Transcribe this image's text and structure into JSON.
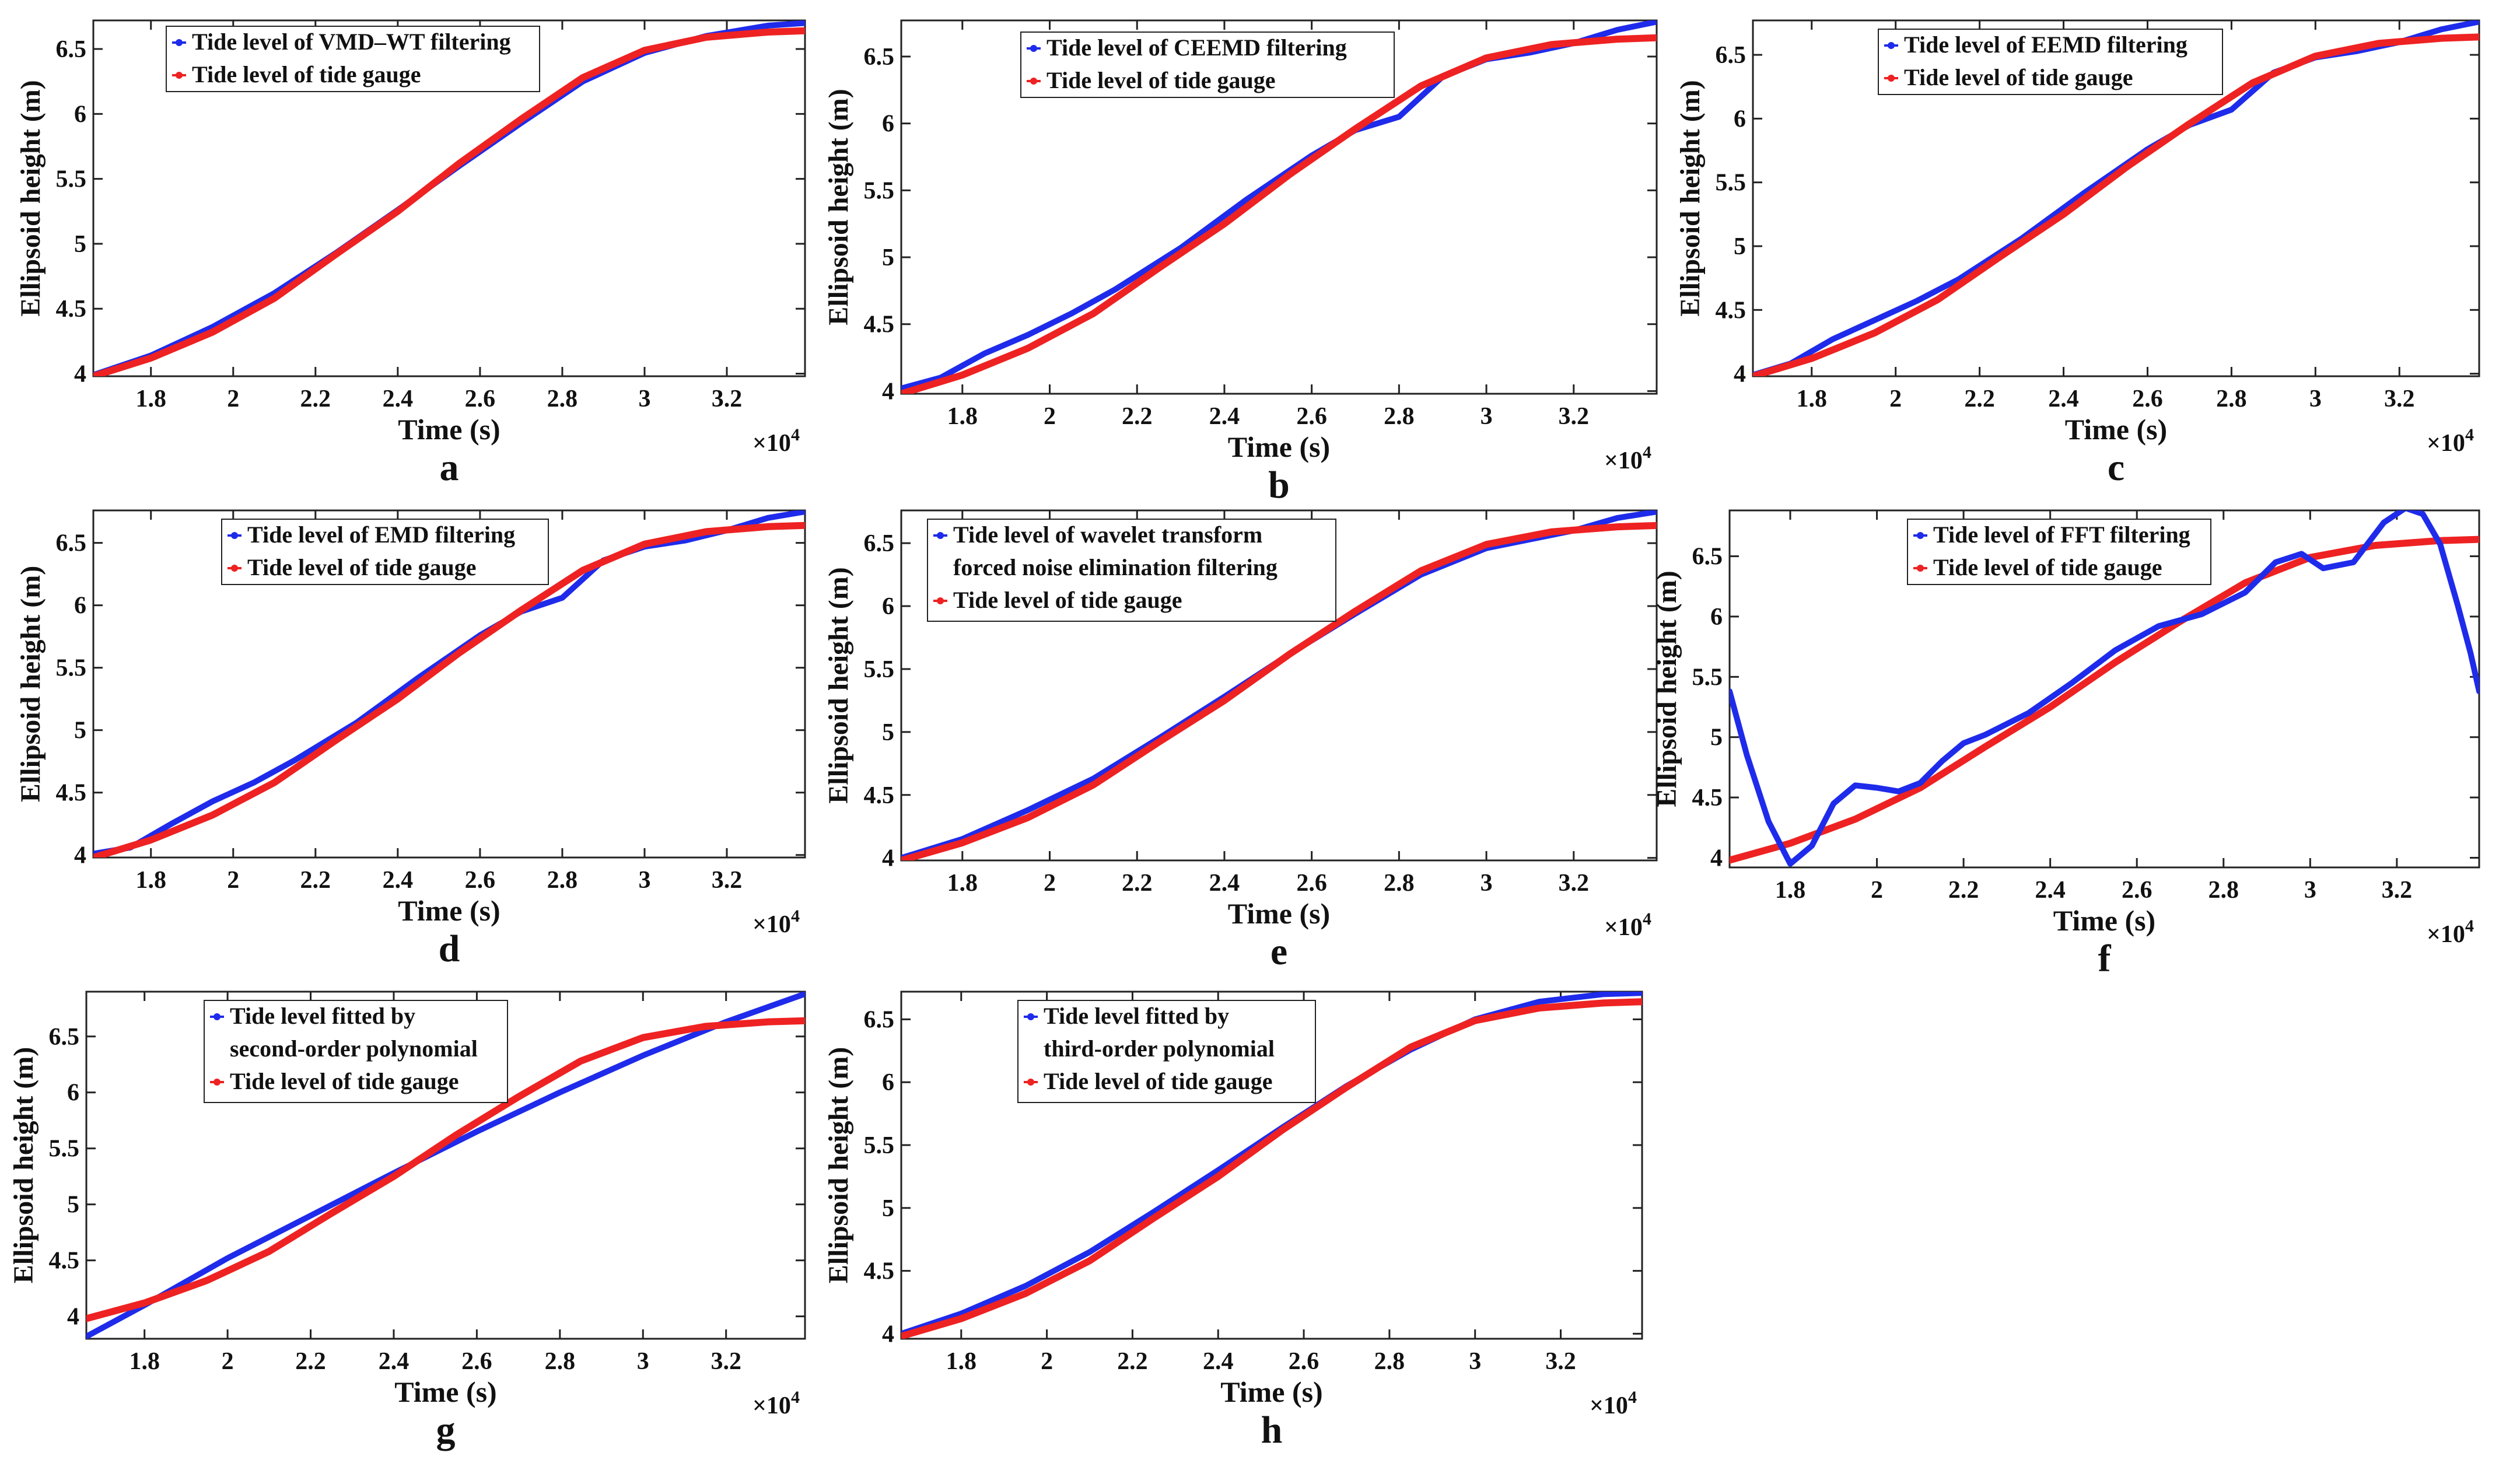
{
  "figure": {
    "x_multiplier": "×10",
    "x_multiplier_exp": "4"
  },
  "colors": {
    "filtered": "#1f2bea",
    "gauge": "#ee2222",
    "axis": "#222222",
    "background": "#ffffff"
  },
  "chart_data": [
    {
      "id": "a",
      "type": "line",
      "letter": "a",
      "xlabel": "Time (s)",
      "ylabel": "Ellipsoid height (m)",
      "xlim": [
        1.66,
        3.39
      ],
      "ylim": [
        3.98,
        6.72
      ],
      "xticks": [
        1.8,
        2,
        2.2,
        2.4,
        2.6,
        2.8,
        3,
        3.2
      ],
      "xticklabels": [
        "1.8",
        "2",
        "2.2",
        "2.4",
        "2.6",
        "2.8",
        "3",
        "3.2"
      ],
      "yticks": [
        4,
        4.5,
        5,
        5.5,
        6,
        6.5
      ],
      "yticklabels": [
        "4",
        "4.5",
        "5",
        "5.5",
        "6",
        "6.5"
      ],
      "legend": [
        "Tide level of VMD–WT filtering",
        "Tide level of tide gauge"
      ],
      "series": [
        {
          "name": "Tide level of VMD–WT filtering",
          "color": "filtered",
          "x": [
            1.66,
            1.8,
            1.95,
            2.1,
            2.25,
            2.4,
            2.55,
            2.7,
            2.85,
            3.0,
            3.15,
            3.3,
            3.39
          ],
          "y": [
            3.99,
            4.14,
            4.36,
            4.62,
            4.93,
            5.26,
            5.6,
            5.93,
            6.25,
            6.47,
            6.6,
            6.68,
            6.7
          ]
        },
        {
          "name": "Tide level of tide gauge",
          "color": "gauge",
          "x": [
            1.66,
            1.8,
            1.95,
            2.1,
            2.25,
            2.4,
            2.55,
            2.7,
            2.85,
            3.0,
            3.15,
            3.3,
            3.39
          ],
          "y": [
            3.98,
            4.12,
            4.32,
            4.58,
            4.92,
            5.25,
            5.62,
            5.96,
            6.28,
            6.49,
            6.59,
            6.63,
            6.64
          ]
        }
      ]
    },
    {
      "id": "b",
      "type": "line",
      "letter": "b",
      "xlabel": "Time (s)",
      "ylabel": "Ellipsoid height (m)",
      "xlim": [
        1.66,
        3.39
      ],
      "ylim": [
        3.98,
        6.77
      ],
      "xticks": [
        1.8,
        2,
        2.2,
        2.4,
        2.6,
        2.8,
        3,
        3.2
      ],
      "xticklabels": [
        "1.8",
        "2",
        "2.2",
        "2.4",
        "2.6",
        "2.8",
        "3",
        "3.2"
      ],
      "yticks": [
        4,
        4.5,
        5,
        5.5,
        6,
        6.5
      ],
      "yticklabels": [
        "4",
        "4.5",
        "5",
        "5.5",
        "6",
        "6.5"
      ],
      "legend": [
        "Tide level of CEEMD filtering",
        "Tide level of tide gauge"
      ],
      "series": [
        {
          "name": "Tide level of CEEMD filtering",
          "color": "filtered",
          "x": [
            1.66,
            1.75,
            1.85,
            1.95,
            2.05,
            2.15,
            2.3,
            2.45,
            2.6,
            2.7,
            2.8,
            2.9,
            3.0,
            3.1,
            3.2,
            3.3,
            3.39
          ],
          "y": [
            4.02,
            4.1,
            4.28,
            4.42,
            4.58,
            4.76,
            5.07,
            5.43,
            5.76,
            5.95,
            6.05,
            6.35,
            6.48,
            6.53,
            6.6,
            6.7,
            6.76
          ]
        },
        {
          "name": "Tide level of tide gauge",
          "color": "gauge",
          "x": [
            1.66,
            1.8,
            1.95,
            2.1,
            2.25,
            2.4,
            2.55,
            2.7,
            2.85,
            3.0,
            3.15,
            3.3,
            3.39
          ],
          "y": [
            3.98,
            4.12,
            4.32,
            4.58,
            4.92,
            5.25,
            5.62,
            5.96,
            6.28,
            6.49,
            6.59,
            6.63,
            6.64
          ]
        }
      ]
    },
    {
      "id": "c",
      "type": "line",
      "letter": "c",
      "xlabel": "Time (s)",
      "ylabel": "Ellipsoid height (m)",
      "xlim": [
        1.66,
        3.39
      ],
      "ylim": [
        3.98,
        6.77
      ],
      "xticks": [
        1.8,
        2,
        2.2,
        2.4,
        2.6,
        2.8,
        3,
        3.2
      ],
      "xticklabels": [
        "1.8",
        "2",
        "2.2",
        "2.4",
        "2.6",
        "2.8",
        "3",
        "3.2"
      ],
      "yticks": [
        4,
        4.5,
        5,
        5.5,
        6,
        6.5
      ],
      "yticklabels": [
        "4",
        "4.5",
        "5",
        "5.5",
        "6",
        "6.5"
      ],
      "legend": [
        "Tide level of EEMD filtering",
        "Tide level of tide gauge"
      ],
      "series": [
        {
          "name": "Tide level of EEMD filtering",
          "color": "filtered",
          "x": [
            1.66,
            1.75,
            1.85,
            1.95,
            2.05,
            2.15,
            2.3,
            2.45,
            2.6,
            2.7,
            2.8,
            2.9,
            3.0,
            3.1,
            3.2,
            3.3,
            3.39
          ],
          "y": [
            3.99,
            4.08,
            4.27,
            4.42,
            4.57,
            4.74,
            5.06,
            5.42,
            5.76,
            5.95,
            6.07,
            6.36,
            6.48,
            6.53,
            6.6,
            6.7,
            6.76
          ]
        },
        {
          "name": "Tide level of tide gauge",
          "color": "gauge",
          "x": [
            1.66,
            1.8,
            1.95,
            2.1,
            2.25,
            2.4,
            2.55,
            2.7,
            2.85,
            3.0,
            3.15,
            3.3,
            3.39
          ],
          "y": [
            3.98,
            4.12,
            4.32,
            4.58,
            4.92,
            5.25,
            5.62,
            5.96,
            6.28,
            6.49,
            6.59,
            6.63,
            6.64
          ]
        }
      ]
    },
    {
      "id": "d",
      "type": "line",
      "letter": "d",
      "xlabel": "Time (s)",
      "ylabel": "Ellipsoid height (m)",
      "xlim": [
        1.66,
        3.39
      ],
      "ylim": [
        3.98,
        6.76
      ],
      "xticks": [
        1.8,
        2,
        2.2,
        2.4,
        2.6,
        2.8,
        3,
        3.2
      ],
      "xticklabels": [
        "1.8",
        "2",
        "2.2",
        "2.4",
        "2.6",
        "2.8",
        "3",
        "3.2"
      ],
      "yticks": [
        4,
        4.5,
        5,
        5.5,
        6,
        6.5
      ],
      "yticklabels": [
        "4",
        "4.5",
        "5",
        "5.5",
        "6",
        "6.5"
      ],
      "legend": [
        "Tide level of EMD filtering",
        "Tide level of tide gauge"
      ],
      "series": [
        {
          "name": "Tide level of EMD filtering",
          "color": "filtered",
          "x": [
            1.66,
            1.75,
            1.85,
            1.95,
            2.05,
            2.15,
            2.3,
            2.45,
            2.6,
            2.7,
            2.8,
            2.9,
            3.0,
            3.1,
            3.2,
            3.3,
            3.39
          ],
          "y": [
            4.01,
            4.06,
            4.25,
            4.43,
            4.58,
            4.76,
            5.06,
            5.42,
            5.76,
            5.95,
            6.06,
            6.36,
            6.47,
            6.52,
            6.6,
            6.7,
            6.75
          ]
        },
        {
          "name": "Tide level of tide gauge",
          "color": "gauge",
          "x": [
            1.66,
            1.8,
            1.95,
            2.1,
            2.25,
            2.4,
            2.55,
            2.7,
            2.85,
            3.0,
            3.15,
            3.3,
            3.39
          ],
          "y": [
            3.98,
            4.12,
            4.32,
            4.58,
            4.92,
            5.25,
            5.62,
            5.96,
            6.28,
            6.49,
            6.59,
            6.63,
            6.64
          ]
        }
      ]
    },
    {
      "id": "e",
      "type": "line",
      "letter": "e",
      "xlabel": "Time (s)",
      "ylabel": "Ellipsoid height (m)",
      "xlim": [
        1.66,
        3.39
      ],
      "ylim": [
        3.98,
        6.76
      ],
      "xticks": [
        1.8,
        2,
        2.2,
        2.4,
        2.6,
        2.8,
        3,
        3.2
      ],
      "xticklabels": [
        "1.8",
        "2",
        "2.2",
        "2.4",
        "2.6",
        "2.8",
        "3",
        "3.2"
      ],
      "yticks": [
        4,
        4.5,
        5,
        5.5,
        6,
        6.5
      ],
      "yticklabels": [
        "4",
        "4.5",
        "5",
        "5.5",
        "6",
        "6.5"
      ],
      "legend": [
        "Tide level of wavelet transform",
        "forced noise elimination filtering",
        "Tide level of tide gauge"
      ],
      "series": [
        {
          "name": "Tide level of wavelet transform forced noise elimination filtering",
          "color": "filtered",
          "x": [
            1.66,
            1.8,
            1.95,
            2.1,
            2.25,
            2.4,
            2.55,
            2.7,
            2.85,
            3.0,
            3.1,
            3.2,
            3.3,
            3.39
          ],
          "y": [
            4.0,
            4.15,
            4.38,
            4.63,
            4.95,
            5.28,
            5.62,
            5.94,
            6.25,
            6.46,
            6.53,
            6.6,
            6.7,
            6.75
          ]
        },
        {
          "name": "Tide level of tide gauge",
          "color": "gauge",
          "x": [
            1.66,
            1.8,
            1.95,
            2.1,
            2.25,
            2.4,
            2.55,
            2.7,
            2.85,
            3.0,
            3.15,
            3.3,
            3.39
          ],
          "y": [
            3.98,
            4.12,
            4.32,
            4.58,
            4.92,
            5.25,
            5.62,
            5.96,
            6.28,
            6.49,
            6.59,
            6.63,
            6.64
          ]
        }
      ]
    },
    {
      "id": "f",
      "type": "line",
      "letter": "f",
      "xlabel": "Time (s)",
      "ylabel": "Ellipsoid height (m)",
      "xlim": [
        1.66,
        3.39
      ],
      "ylim": [
        3.92,
        6.88
      ],
      "xticks": [
        1.8,
        2,
        2.2,
        2.4,
        2.6,
        2.8,
        3,
        3.2
      ],
      "xticklabels": [
        "1.8",
        "2",
        "2.2",
        "2.4",
        "2.6",
        "2.8",
        "3",
        "3.2"
      ],
      "yticks": [
        4,
        4.5,
        5,
        5.5,
        6,
        6.5
      ],
      "yticklabels": [
        "4",
        "4.5",
        "5",
        "5.5",
        "6",
        "6.5"
      ],
      "legend": [
        "Tide level of FFT filtering",
        "Tide level of tide gauge"
      ],
      "series": [
        {
          "name": "Tide level of FFT filtering",
          "color": "filtered",
          "x": [
            1.66,
            1.7,
            1.75,
            1.8,
            1.85,
            1.9,
            1.95,
            2.0,
            2.05,
            2.1,
            2.15,
            2.2,
            2.25,
            2.35,
            2.45,
            2.55,
            2.65,
            2.75,
            2.85,
            2.92,
            2.98,
            3.03,
            3.1,
            3.17,
            3.22,
            3.26,
            3.3,
            3.34,
            3.37,
            3.39
          ],
          "y": [
            5.38,
            4.85,
            4.3,
            3.95,
            4.1,
            4.45,
            4.6,
            4.58,
            4.55,
            4.62,
            4.8,
            4.95,
            5.02,
            5.2,
            5.45,
            5.72,
            5.92,
            6.02,
            6.2,
            6.45,
            6.52,
            6.4,
            6.45,
            6.78,
            6.9,
            6.85,
            6.6,
            6.1,
            5.7,
            5.38
          ]
        },
        {
          "name": "Tide level of tide gauge",
          "color": "gauge",
          "x": [
            1.66,
            1.8,
            1.95,
            2.1,
            2.25,
            2.4,
            2.55,
            2.7,
            2.85,
            3.0,
            3.15,
            3.3,
            3.39
          ],
          "y": [
            3.98,
            4.12,
            4.32,
            4.58,
            4.92,
            5.25,
            5.62,
            5.96,
            6.28,
            6.49,
            6.59,
            6.63,
            6.64
          ]
        }
      ]
    },
    {
      "id": "g",
      "type": "line",
      "letter": "g",
      "xlabel": "Time (s)",
      "ylabel": "Ellipsoid height (m)",
      "xlim": [
        1.66,
        3.39
      ],
      "ylim": [
        3.8,
        6.9
      ],
      "xticks": [
        1.8,
        2,
        2.2,
        2.4,
        2.6,
        2.8,
        3,
        3.2
      ],
      "xticklabels": [
        "1.8",
        "2",
        "2.2",
        "2.4",
        "2.6",
        "2.8",
        "3",
        "3.2"
      ],
      "yticks": [
        4,
        4.5,
        5,
        5.5,
        6,
        6.5
      ],
      "yticklabels": [
        "4",
        "4.5",
        "5",
        "5.5",
        "6",
        "6.5"
      ],
      "legend": [
        "Tide level fitted by",
        "second-order polynomial",
        "Tide level of tide gauge"
      ],
      "series": [
        {
          "name": "Tide level fitted by second-order polynomial",
          "color": "filtered",
          "x": [
            1.66,
            1.8,
            2.0,
            2.2,
            2.4,
            2.6,
            2.8,
            3.0,
            3.2,
            3.39
          ],
          "y": [
            3.82,
            4.1,
            4.52,
            4.9,
            5.28,
            5.65,
            6.0,
            6.33,
            6.63,
            6.88
          ]
        },
        {
          "name": "Tide level of tide gauge",
          "color": "gauge",
          "x": [
            1.66,
            1.8,
            1.95,
            2.1,
            2.25,
            2.4,
            2.55,
            2.7,
            2.85,
            3.0,
            3.15,
            3.3,
            3.39
          ],
          "y": [
            3.98,
            4.12,
            4.32,
            4.58,
            4.92,
            5.25,
            5.62,
            5.96,
            6.28,
            6.49,
            6.59,
            6.63,
            6.64
          ]
        }
      ]
    },
    {
      "id": "h",
      "type": "line",
      "letter": "h",
      "xlabel": "Time (s)",
      "ylabel": "Ellipsoid height (m)",
      "xlim": [
        1.66,
        3.39
      ],
      "ylim": [
        3.96,
        6.72
      ],
      "xticks": [
        1.8,
        2,
        2.2,
        2.4,
        2.6,
        2.8,
        3,
        3.2
      ],
      "xticklabels": [
        "1.8",
        "2",
        "2.2",
        "2.4",
        "2.6",
        "2.8",
        "3",
        "3.2"
      ],
      "yticks": [
        4,
        4.5,
        5,
        5.5,
        6,
        6.5
      ],
      "yticklabels": [
        "4",
        "4.5",
        "5",
        "5.5",
        "6",
        "6.5"
      ],
      "legend": [
        "Tide level fitted by",
        "third-order polynomial",
        "Tide level of tide gauge"
      ],
      "series": [
        {
          "name": "Tide level fitted by third-order polynomial",
          "color": "filtered",
          "x": [
            1.66,
            1.8,
            1.95,
            2.1,
            2.25,
            2.4,
            2.55,
            2.7,
            2.85,
            3.0,
            3.15,
            3.3,
            3.39
          ],
          "y": [
            4.0,
            4.16,
            4.38,
            4.65,
            4.97,
            5.3,
            5.64,
            5.97,
            6.26,
            6.5,
            6.64,
            6.7,
            6.71
          ]
        },
        {
          "name": "Tide level of tide gauge",
          "color": "gauge",
          "x": [
            1.66,
            1.8,
            1.95,
            2.1,
            2.25,
            2.4,
            2.55,
            2.7,
            2.85,
            3.0,
            3.15,
            3.3,
            3.39
          ],
          "y": [
            3.98,
            4.12,
            4.32,
            4.58,
            4.92,
            5.25,
            5.62,
            5.96,
            6.28,
            6.49,
            6.59,
            6.63,
            6.64
          ]
        }
      ]
    }
  ]
}
